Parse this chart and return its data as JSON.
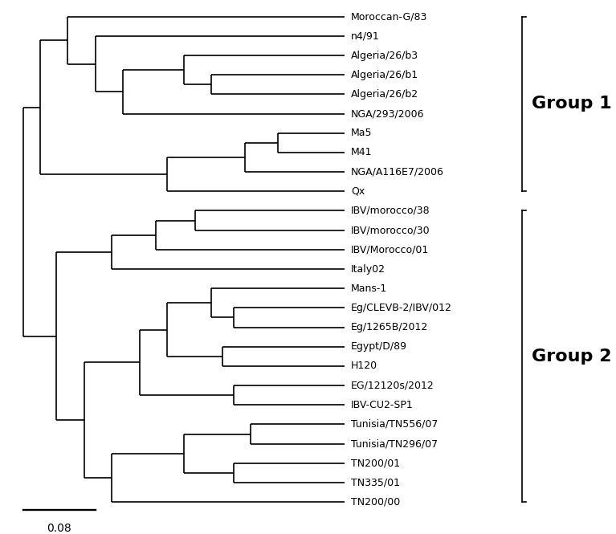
{
  "taxa": [
    "Moroccan-G/83",
    "n4/91",
    "Algeria/26/b3",
    "Algeria/26/b1",
    "Algeria/26/b2",
    "NGA/293/2006",
    "Ma5",
    "M41",
    "NGA/A116E7/2006",
    "Qx",
    "IBV/morocco/38",
    "IBV/morocco/30",
    "IBV/Morocco/01",
    "Italy02",
    "Mans-1",
    "Eg/CLEVB-2/IBV/012",
    "Eg/1265B/2012",
    "Egypt/D/89",
    "H120",
    "EG/12120s/2012",
    "IBV-CU2-SP1",
    "Tunisia/TN556/07",
    "Tunisia/TN296/07",
    "TN200/01",
    "TN335/01",
    "TN200/00"
  ],
  "group1_taxa": [
    "Moroccan-G/83",
    "n4/91",
    "Algeria/26/b3",
    "Algeria/26/b1",
    "Algeria/26/b2",
    "NGA/293/2006",
    "Ma5",
    "M41",
    "NGA/A116E7/2006",
    "Qx"
  ],
  "group2_taxa": [
    "IBV/morocco/38",
    "IBV/morocco/30",
    "IBV/Morocco/01",
    "Italy02",
    "Mans-1",
    "Eg/CLEVB-2/IBV/012",
    "Eg/1265B/2012",
    "Egypt/D/89",
    "H120",
    "EG/12120s/2012",
    "IBV-CU2-SP1",
    "Tunisia/TN556/07",
    "Tunisia/TN296/07",
    "TN200/01",
    "TN335/01",
    "TN200/00"
  ],
  "scale_bar_value": "0.08",
  "line_color": "#000000",
  "background_color": "#ffffff",
  "label_fontsize": 9,
  "group_fontsize": 16
}
